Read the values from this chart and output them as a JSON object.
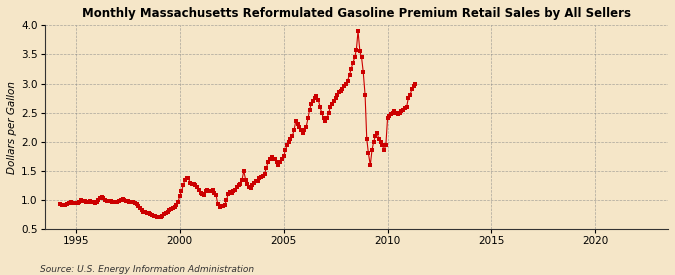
{
  "title": "Monthly Massachusetts Reformulated Gasoline Premium Retail Sales by All Sellers",
  "ylabel": "Dollars per Gallon",
  "source": "Source: U.S. Energy Information Administration",
  "background_color": "#f5e6c8",
  "plot_bg_color": "#f5e6c8",
  "marker_color": "#cc0000",
  "ylim": [
    0.5,
    4.0
  ],
  "xlim": [
    1993.5,
    2023.5
  ],
  "yticks": [
    0.5,
    1.0,
    1.5,
    2.0,
    2.5,
    3.0,
    3.5,
    4.0
  ],
  "xticks": [
    1995,
    2000,
    2005,
    2010,
    2015,
    2020
  ],
  "data": [
    [
      1994.25,
      0.93
    ],
    [
      1994.33,
      0.92
    ],
    [
      1994.42,
      0.91
    ],
    [
      1994.5,
      0.92
    ],
    [
      1994.58,
      0.93
    ],
    [
      1994.67,
      0.95
    ],
    [
      1994.75,
      0.96
    ],
    [
      1994.83,
      0.95
    ],
    [
      1994.92,
      0.94
    ],
    [
      1995.0,
      0.94
    ],
    [
      1995.08,
      0.95
    ],
    [
      1995.17,
      0.97
    ],
    [
      1995.25,
      1.0
    ],
    [
      1995.33,
      0.99
    ],
    [
      1995.42,
      0.98
    ],
    [
      1995.5,
      0.96
    ],
    [
      1995.58,
      0.97
    ],
    [
      1995.67,
      0.98
    ],
    [
      1995.75,
      0.97
    ],
    [
      1995.83,
      0.96
    ],
    [
      1995.92,
      0.95
    ],
    [
      1996.0,
      0.97
    ],
    [
      1996.08,
      1.0
    ],
    [
      1996.17,
      1.04
    ],
    [
      1996.25,
      1.05
    ],
    [
      1996.33,
      1.03
    ],
    [
      1996.42,
      1.0
    ],
    [
      1996.5,
      0.99
    ],
    [
      1996.58,
      0.99
    ],
    [
      1996.67,
      0.98
    ],
    [
      1996.75,
      0.97
    ],
    [
      1996.83,
      0.96
    ],
    [
      1996.92,
      0.96
    ],
    [
      1997.0,
      0.97
    ],
    [
      1997.08,
      0.98
    ],
    [
      1997.17,
      1.0
    ],
    [
      1997.25,
      1.01
    ],
    [
      1997.33,
      1.0
    ],
    [
      1997.42,
      0.99
    ],
    [
      1997.5,
      0.98
    ],
    [
      1997.58,
      0.97
    ],
    [
      1997.67,
      0.97
    ],
    [
      1997.75,
      0.96
    ],
    [
      1997.83,
      0.95
    ],
    [
      1997.92,
      0.93
    ],
    [
      1998.0,
      0.9
    ],
    [
      1998.08,
      0.87
    ],
    [
      1998.17,
      0.83
    ],
    [
      1998.25,
      0.8
    ],
    [
      1998.33,
      0.79
    ],
    [
      1998.42,
      0.78
    ],
    [
      1998.5,
      0.77
    ],
    [
      1998.58,
      0.76
    ],
    [
      1998.67,
      0.74
    ],
    [
      1998.75,
      0.73
    ],
    [
      1998.83,
      0.72
    ],
    [
      1998.92,
      0.71
    ],
    [
      1999.0,
      0.7
    ],
    [
      1999.08,
      0.71
    ],
    [
      1999.17,
      0.73
    ],
    [
      1999.25,
      0.76
    ],
    [
      1999.33,
      0.78
    ],
    [
      1999.42,
      0.8
    ],
    [
      1999.5,
      0.82
    ],
    [
      1999.58,
      0.85
    ],
    [
      1999.67,
      0.87
    ],
    [
      1999.75,
      0.88
    ],
    [
      1999.83,
      0.91
    ],
    [
      1999.92,
      0.97
    ],
    [
      2000.0,
      1.07
    ],
    [
      2000.08,
      1.15
    ],
    [
      2000.17,
      1.25
    ],
    [
      2000.25,
      1.35
    ],
    [
      2000.33,
      1.38
    ],
    [
      2000.42,
      1.37
    ],
    [
      2000.5,
      1.3
    ],
    [
      2000.58,
      1.28
    ],
    [
      2000.67,
      1.27
    ],
    [
      2000.75,
      1.25
    ],
    [
      2000.83,
      1.22
    ],
    [
      2000.92,
      1.18
    ],
    [
      2001.0,
      1.12
    ],
    [
      2001.08,
      1.1
    ],
    [
      2001.17,
      1.08
    ],
    [
      2001.25,
      1.15
    ],
    [
      2001.33,
      1.18
    ],
    [
      2001.42,
      1.15
    ],
    [
      2001.5,
      1.15
    ],
    [
      2001.58,
      1.17
    ],
    [
      2001.67,
      1.12
    ],
    [
      2001.75,
      1.08
    ],
    [
      2001.83,
      0.93
    ],
    [
      2001.92,
      0.88
    ],
    [
      2002.0,
      0.89
    ],
    [
      2002.08,
      0.9
    ],
    [
      2002.17,
      0.92
    ],
    [
      2002.25,
      1.0
    ],
    [
      2002.33,
      1.1
    ],
    [
      2002.42,
      1.13
    ],
    [
      2002.5,
      1.12
    ],
    [
      2002.58,
      1.15
    ],
    [
      2002.67,
      1.18
    ],
    [
      2002.75,
      1.22
    ],
    [
      2002.83,
      1.25
    ],
    [
      2002.92,
      1.28
    ],
    [
      2003.0,
      1.35
    ],
    [
      2003.08,
      1.5
    ],
    [
      2003.17,
      1.35
    ],
    [
      2003.25,
      1.28
    ],
    [
      2003.33,
      1.22
    ],
    [
      2003.42,
      1.2
    ],
    [
      2003.5,
      1.25
    ],
    [
      2003.58,
      1.3
    ],
    [
      2003.67,
      1.32
    ],
    [
      2003.75,
      1.33
    ],
    [
      2003.83,
      1.38
    ],
    [
      2003.92,
      1.4
    ],
    [
      2004.0,
      1.42
    ],
    [
      2004.08,
      1.45
    ],
    [
      2004.17,
      1.55
    ],
    [
      2004.25,
      1.65
    ],
    [
      2004.33,
      1.7
    ],
    [
      2004.42,
      1.73
    ],
    [
      2004.5,
      1.7
    ],
    [
      2004.58,
      1.7
    ],
    [
      2004.67,
      1.65
    ],
    [
      2004.75,
      1.6
    ],
    [
      2004.83,
      1.65
    ],
    [
      2004.92,
      1.7
    ],
    [
      2005.0,
      1.75
    ],
    [
      2005.08,
      1.85
    ],
    [
      2005.17,
      1.95
    ],
    [
      2005.25,
      2.0
    ],
    [
      2005.33,
      2.05
    ],
    [
      2005.42,
      2.1
    ],
    [
      2005.5,
      2.2
    ],
    [
      2005.58,
      2.35
    ],
    [
      2005.67,
      2.3
    ],
    [
      2005.75,
      2.25
    ],
    [
      2005.83,
      2.2
    ],
    [
      2005.92,
      2.15
    ],
    [
      2006.0,
      2.2
    ],
    [
      2006.08,
      2.25
    ],
    [
      2006.17,
      2.4
    ],
    [
      2006.25,
      2.55
    ],
    [
      2006.33,
      2.65
    ],
    [
      2006.42,
      2.7
    ],
    [
      2006.5,
      2.75
    ],
    [
      2006.58,
      2.78
    ],
    [
      2006.67,
      2.72
    ],
    [
      2006.75,
      2.6
    ],
    [
      2006.83,
      2.5
    ],
    [
      2006.92,
      2.4
    ],
    [
      2007.0,
      2.35
    ],
    [
      2007.08,
      2.4
    ],
    [
      2007.17,
      2.5
    ],
    [
      2007.25,
      2.6
    ],
    [
      2007.33,
      2.65
    ],
    [
      2007.42,
      2.7
    ],
    [
      2007.5,
      2.75
    ],
    [
      2007.58,
      2.8
    ],
    [
      2007.67,
      2.85
    ],
    [
      2007.75,
      2.88
    ],
    [
      2007.83,
      2.9
    ],
    [
      2007.92,
      2.95
    ],
    [
      2008.0,
      3.0
    ],
    [
      2008.08,
      3.05
    ],
    [
      2008.17,
      3.15
    ],
    [
      2008.25,
      3.25
    ],
    [
      2008.33,
      3.35
    ],
    [
      2008.42,
      3.45
    ],
    [
      2008.5,
      3.58
    ],
    [
      2008.58,
      3.9
    ],
    [
      2008.67,
      3.55
    ],
    [
      2008.75,
      3.45
    ],
    [
      2008.83,
      3.2
    ],
    [
      2008.92,
      2.8
    ],
    [
      2009.0,
      2.05
    ],
    [
      2009.08,
      1.8
    ],
    [
      2009.17,
      1.6
    ],
    [
      2009.25,
      1.85
    ],
    [
      2009.33,
      2.0
    ],
    [
      2009.42,
      2.1
    ],
    [
      2009.5,
      2.15
    ],
    [
      2009.58,
      2.05
    ],
    [
      2009.67,
      2.0
    ],
    [
      2009.75,
      1.95
    ],
    [
      2009.83,
      1.85
    ],
    [
      2009.92,
      1.95
    ],
    [
      2010.0,
      2.4
    ],
    [
      2010.08,
      2.45
    ],
    [
      2010.17,
      2.47
    ],
    [
      2010.25,
      2.5
    ],
    [
      2010.33,
      2.52
    ],
    [
      2010.42,
      2.5
    ],
    [
      2010.5,
      2.48
    ],
    [
      2010.58,
      2.5
    ],
    [
      2010.67,
      2.52
    ],
    [
      2010.75,
      2.55
    ],
    [
      2010.83,
      2.58
    ],
    [
      2010.92,
      2.6
    ],
    [
      2011.0,
      2.75
    ],
    [
      2011.08,
      2.8
    ],
    [
      2011.17,
      2.9
    ],
    [
      2011.25,
      2.95
    ],
    [
      2011.33,
      3.0
    ]
  ]
}
